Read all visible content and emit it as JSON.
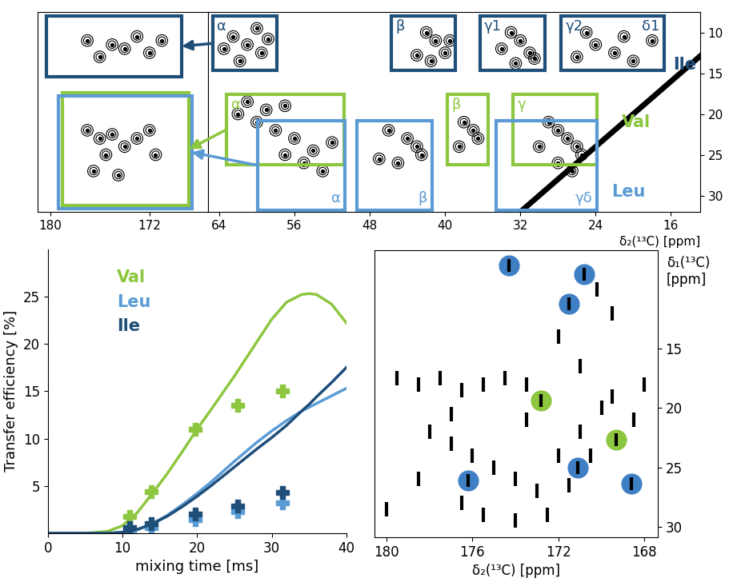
{
  "chart_data": [
    {
      "type": "spectrum_2d",
      "x_label": "δ₂(¹³C) [ppm]",
      "panels": [
        {
          "xlim": [
            181.0,
            167.3
          ],
          "xticks": [
            180,
            172
          ]
        },
        {
          "xlim": [
            65.2,
            12.9
          ],
          "xticks": [
            64,
            56,
            48,
            40,
            32,
            24,
            16
          ]
        }
      ],
      "ylim": [
        32.0,
        7.5
      ],
      "yticks": [
        10,
        15,
        20,
        25,
        30
      ],
      "residues": [
        {
          "name": "Ile",
          "color": "#1f4e79",
          "name_at": [
            13.3,
            14.0
          ],
          "regions": [
            {
              "labels": [
                "α"
              ],
              "x": [
                57.9,
                64.7
              ],
              "y": [
                8.0,
                14.7
              ],
              "peaks": [
                [
                  62.5,
                  10.5
                ],
                [
                  61.0,
                  11.5
                ],
                [
                  60.0,
                  9.5
                ],
                [
                  59.5,
                  12.5
                ],
                [
                  61.8,
                  13.5
                ],
                [
                  58.8,
                  10.8
                ],
                [
                  63.5,
                  12.0
                ]
              ]
            },
            {
              "labels": [
                "β"
              ],
              "x": [
                38.9,
                45.7
              ],
              "y": [
                8.0,
                14.7
              ],
              "peaks": [
                [
                  42.0,
                  10.0
                ],
                [
                  41.0,
                  11.0
                ],
                [
                  40.0,
                  12.5
                ],
                [
                  43.0,
                  12.8
                ],
                [
                  41.5,
                  13.5
                ],
                [
                  39.5,
                  11.0
                ]
              ]
            },
            {
              "labels": [
                "γ1"
              ],
              "x": [
                29.4,
                36.3
              ],
              "y": [
                8.0,
                14.7
              ],
              "peaks": [
                [
                  33.0,
                  10.0
                ],
                [
                  32.0,
                  11.0
                ],
                [
                  31.0,
                  12.5
                ],
                [
                  30.5,
                  13.2
                ],
                [
                  34.0,
                  12.0
                ],
                [
                  32.5,
                  13.8
                ]
              ]
            },
            {
              "labels": [
                "γ2",
                "δ1"
              ],
              "x": [
                16.7,
                27.7
              ],
              "y": [
                8.0,
                14.7
              ],
              "peaks": [
                [
                  25.0,
                  10.0
                ],
                [
                  24.0,
                  11.5
                ],
                [
                  22.0,
                  12.5
                ],
                [
                  20.0,
                  13.5
                ],
                [
                  18.0,
                  11.0
                ],
                [
                  26.0,
                  13.0
                ],
                [
                  21.0,
                  10.5
                ]
              ]
            }
          ],
          "inset": {
            "x": [
              169.4,
              180.3
            ],
            "y": [
              8.0,
              15.4
            ],
            "peaks": [
              [
                177.0,
                11.0
              ],
              [
                175.0,
                11.5
              ],
              [
                174.0,
                12.0
              ],
              [
                173.0,
                10.5
              ],
              [
                172.0,
                12.5
              ],
              [
                176.0,
                13.0
              ],
              [
                171.0,
                11.0
              ]
            ]
          }
        },
        {
          "name": "Val",
          "color": "#8dc63f",
          "name_at": [
            19.7,
            21.0
          ],
          "regions": [
            {
              "labels": [
                "α"
              ],
              "x": [
                50.7,
                63.2
              ],
              "y": [
                17.6,
                26.2
              ],
              "peaks": [
                [
                  61.0,
                  18.5
                ],
                [
                  59.0,
                  19.5
                ],
                [
                  60.0,
                  21.0
                ],
                [
                  58.0,
                  22.0
                ],
                [
                  62.0,
                  20.0
                ],
                [
                  57.0,
                  19.0
                ]
              ]
            },
            {
              "labels": [
                "β"
              ],
              "x": [
                35.4,
                39.8
              ],
              "y": [
                17.6,
                26.2
              ],
              "peaks": [
                [
                  38.0,
                  21.0
                ],
                [
                  37.0,
                  22.0
                ],
                [
                  36.5,
                  23.0
                ],
                [
                  38.5,
                  24.0
                ]
              ]
            },
            {
              "labels": [
                "γ"
              ],
              "x": [
                23.9,
                32.8
              ],
              "y": [
                17.6,
                26.2
              ],
              "peaks": [
                [
                  29.0,
                  21.0
                ],
                [
                  28.0,
                  22.0
                ],
                [
                  27.0,
                  23.0
                ],
                [
                  30.0,
                  24.0
                ]
              ]
            }
          ],
          "inset": {
            "x": [
              168.8,
              179.0
            ],
            "y": [
              17.4,
              31.2
            ],
            "peaks": [
              [
                177.0,
                22.0
              ],
              [
                176.0,
                23.0
              ],
              [
                175.0,
                22.5
              ],
              [
                174.0,
                24.0
              ],
              [
                173.0,
                23.0
              ]
            ]
          }
        },
        {
          "name": "Leu",
          "color": "#5b9bd5",
          "name_at": [
            20.5,
            29.6
          ],
          "regions": [
            {
              "labels": [
                "α"
              ],
              "x": [
                50.6,
                59.9
              ],
              "y": [
                20.8,
                31.8
              ],
              "peaks": [
                [
                  56.0,
                  23.0
                ],
                [
                  54.0,
                  24.5
                ],
                [
                  55.0,
                  26.0
                ],
                [
                  53.0,
                  27.0
                ],
                [
                  57.0,
                  25.0
                ],
                [
                  52.0,
                  23.5
                ]
              ]
            },
            {
              "labels": [
                "β"
              ],
              "x": [
                41.4,
                49.4
              ],
              "y": [
                20.8,
                31.8
              ],
              "peaks": [
                [
                  46.0,
                  22.0
                ],
                [
                  44.0,
                  23.0
                ],
                [
                  43.0,
                  24.0
                ],
                [
                  45.0,
                  26.0
                ],
                [
                  42.5,
                  25.0
                ],
                [
                  47.0,
                  25.5
                ]
              ]
            },
            {
              "labels": [
                "γδ"
              ],
              "x": [
                23.9,
                34.6
              ],
              "y": [
                20.8,
                31.8
              ],
              "peaks": [
                [
                  26.0,
                  24.0
                ],
                [
                  25.5,
                  25.0
                ],
                [
                  28.0,
                  26.0
                ],
                [
                  26.5,
                  27.0
                ]
              ]
            }
          ],
          "inset": {
            "x": [
              168.6,
              179.3
            ],
            "y": [
              17.8,
              31.6
            ],
            "peaks": [
              [
                175.5,
                25.0
              ],
              [
                172.0,
                22.0
              ],
              [
                176.5,
                27.0
              ],
              [
                174.5,
                27.5
              ],
              [
                171.5,
                25.0
              ]
            ]
          }
        }
      ]
    },
    {
      "type": "line",
      "x_label": "mixing time [ms]",
      "y_label": "Transfer efficiency [%]",
      "xlim": [
        0,
        40
      ],
      "xticks": [
        0,
        10,
        20,
        30,
        40
      ],
      "ylim": [
        0,
        30
      ],
      "yticks": [
        5,
        10,
        15,
        20,
        25
      ],
      "legend": "upper left",
      "marker": "plus",
      "x": [
        0,
        5,
        8,
        10,
        12,
        14,
        16,
        18,
        20,
        22,
        25,
        28,
        30,
        32,
        34,
        35,
        36,
        38,
        40
      ],
      "series": [
        {
          "name": "Val",
          "color": "#8dc63f",
          "values": [
            0,
            0,
            0.2,
            0.8,
            2.2,
            4.2,
            6.3,
            8.6,
            11.0,
            13.2,
            16.6,
            20.2,
            22.6,
            24.4,
            25.2,
            25.3,
            25.2,
            24.2,
            22.2
          ],
          "points": {
            "x": [
              10.9,
              13.8,
              19.7,
              25.4,
              31.4
            ],
            "values": [
              1.8,
              4.4,
              11.0,
              13.5,
              15.0
            ]
          }
        },
        {
          "name": "Leu",
          "color": "#5b9bd5",
          "values": [
            0,
            0,
            0,
            0.1,
            0.4,
            1.0,
            1.9,
            3.0,
            4.2,
            5.5,
            7.6,
            9.6,
            10.8,
            11.9,
            12.9,
            13.3,
            13.7,
            14.5,
            15.3
          ],
          "points": {
            "x": [
              10.9,
              13.8,
              19.7,
              25.4,
              31.4
            ],
            "values": [
              0.3,
              0.6,
              1.4,
              2.3,
              3.2
            ]
          }
        },
        {
          "name": "Ile",
          "color": "#1f4e79",
          "values": [
            0,
            0,
            0,
            0.1,
            0.4,
            1.0,
            1.8,
            2.8,
            3.9,
            5.1,
            7.0,
            8.9,
            10.1,
            11.4,
            12.9,
            13.6,
            14.4,
            15.9,
            17.5
          ],
          "points": {
            "x": [
              10.9,
              13.8,
              19.7,
              25.4,
              31.4
            ],
            "values": [
              0.6,
              1.0,
              2.0,
              2.9,
              4.3
            ]
          }
        }
      ]
    },
    {
      "type": "spectrum_2d",
      "x_label": "δ₂(¹³C) [ppm]",
      "y_label": "δ₁(¹³C)\n[ppm]",
      "xlim": [
        180.56,
        167.4
      ],
      "xticks": [
        180,
        176,
        172,
        168
      ],
      "ylim": [
        30.9,
        6.7
      ],
      "yticks": [
        15,
        20,
        25,
        30
      ],
      "peaks": [
        [
          179.5,
          17.5
        ],
        [
          178.5,
          18.0
        ],
        [
          177.5,
          17.5
        ],
        [
          176.5,
          18.5
        ],
        [
          175.5,
          18.0
        ],
        [
          174.5,
          17.5
        ],
        [
          173.5,
          18.0
        ],
        [
          178.0,
          22.0
        ],
        [
          177.0,
          23.0
        ],
        [
          176.0,
          24.0
        ],
        [
          175.0,
          25.0
        ],
        [
          174.0,
          26.0
        ],
        [
          173.0,
          27.0
        ],
        [
          172.0,
          24.0
        ],
        [
          171.0,
          22.0
        ],
        [
          170.0,
          20.0
        ],
        [
          169.5,
          19.0
        ],
        [
          168.5,
          21.0
        ],
        [
          176.5,
          28.0
        ],
        [
          175.5,
          29.0
        ],
        [
          174.0,
          29.5
        ],
        [
          172.5,
          29.0
        ],
        [
          178.5,
          26.0
        ],
        [
          180.0,
          28.5
        ],
        [
          177.0,
          20.5
        ],
        [
          173.5,
          21.0
        ],
        [
          171.5,
          26.5
        ],
        [
          170.5,
          24.0
        ],
        [
          168.0,
          18.0
        ],
        [
          172.0,
          14.0
        ],
        [
          169.5,
          12.0
        ],
        [
          171.0,
          16.5
        ],
        [
          170.2,
          10.0
        ]
      ],
      "highlights": [
        {
          "color": "#3f7fc4",
          "points": [
            [
              174.3,
              8.0
            ],
            [
              170.8,
              8.7
            ],
            [
              171.5,
              11.2
            ],
            [
              176.2,
              26.1
            ],
            [
              171.1,
              25.0
            ],
            [
              168.6,
              26.4
            ]
          ]
        },
        {
          "color": "#8dc63f",
          "points": [
            [
              172.8,
              19.4
            ],
            [
              169.3,
              22.7
            ]
          ]
        }
      ]
    }
  ]
}
